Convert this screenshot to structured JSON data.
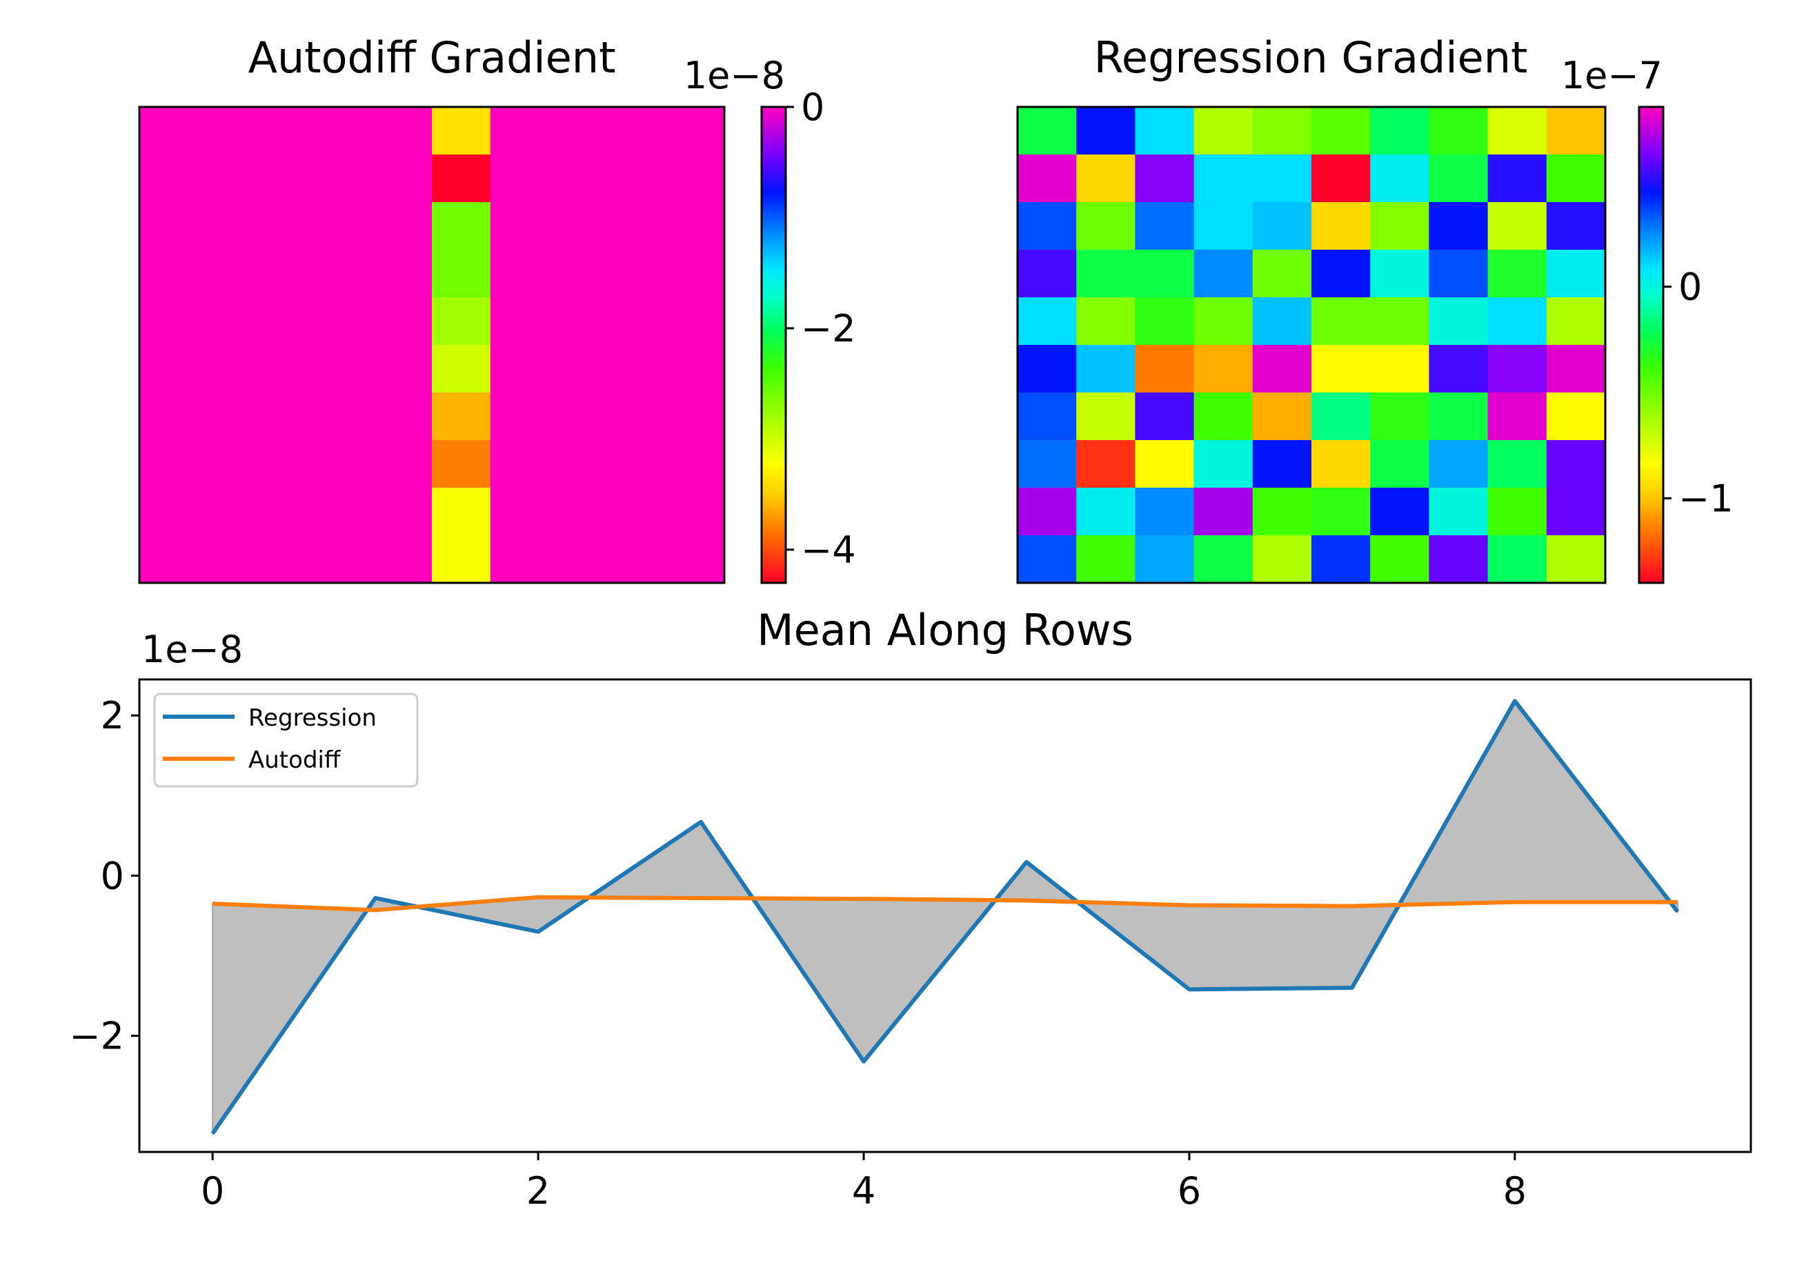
{
  "chart_data": [
    {
      "type": "heatmap",
      "title": "Autodiff Gradient",
      "colormap": "gist_rainbow_r",
      "colorbar": {
        "offset_label": "1e−8",
        "range": [
          -4.3,
          0.0
        ],
        "ticks": [
          0,
          -2,
          -4
        ],
        "tick_labels": [
          "0",
          "−2",
          "−4"
        ]
      },
      "rows": 10,
      "cols": 10,
      "note_values_in_units_of_offset": true,
      "values": [
        [
          0,
          0,
          0,
          0,
          0,
          -3.4,
          0,
          0,
          0,
          0
        ],
        [
          0,
          0,
          0,
          0,
          0,
          -4.3,
          0,
          0,
          0,
          0
        ],
        [
          0,
          0,
          0,
          0,
          0,
          -2.6,
          0,
          0,
          0,
          0
        ],
        [
          0,
          0,
          0,
          0,
          0,
          -2.6,
          0,
          0,
          0,
          0
        ],
        [
          0,
          0,
          0,
          0,
          0,
          -2.8,
          0,
          0,
          0,
          0
        ],
        [
          0,
          0,
          0,
          0,
          0,
          -3.0,
          0,
          0,
          0,
          0
        ],
        [
          0,
          0,
          0,
          0,
          0,
          -3.6,
          0,
          0,
          0,
          0
        ],
        [
          0,
          0,
          0,
          0,
          0,
          -3.8,
          0,
          0,
          0,
          0
        ],
        [
          0,
          0,
          0,
          0,
          0,
          -3.2,
          0,
          0,
          0,
          0
        ],
        [
          0,
          0,
          0,
          0,
          0,
          -3.2,
          0,
          0,
          0,
          0
        ]
      ]
    },
    {
      "type": "heatmap",
      "title": "Regression Gradient",
      "colormap": "gist_rainbow_r",
      "colorbar": {
        "offset_label": "1e−7",
        "range": [
          -1.4,
          0.85
        ],
        "ticks": [
          0,
          -1
        ],
        "tick_labels": [
          "0",
          "−1"
        ]
      },
      "rows": 10,
      "cols": 10,
      "values": [
        [
          -0.25,
          0.45,
          0.1,
          -0.65,
          -0.55,
          -0.45,
          -0.2,
          -0.35,
          -0.75,
          -1.0
        ],
        [
          0.8,
          -0.95,
          0.65,
          0.1,
          0.1,
          -1.4,
          0.05,
          -0.25,
          0.5,
          -0.4
        ],
        [
          0.35,
          -0.5,
          0.3,
          0.1,
          0.15,
          -0.95,
          -0.55,
          0.45,
          -0.7,
          0.5
        ],
        [
          0.55,
          -0.25,
          -0.25,
          0.25,
          -0.5,
          0.45,
          0.0,
          0.35,
          -0.3,
          0.05
        ],
        [
          0.1,
          -0.55,
          -0.35,
          -0.5,
          0.15,
          -0.5,
          -0.5,
          0.0,
          0.1,
          -0.65
        ],
        [
          0.45,
          0.15,
          -1.15,
          -1.05,
          0.8,
          -0.85,
          -0.85,
          0.55,
          0.65,
          0.8
        ],
        [
          0.35,
          -0.7,
          0.55,
          -0.4,
          -1.05,
          -0.15,
          -0.35,
          -0.25,
          0.8,
          -0.85
        ],
        [
          0.3,
          -1.3,
          -0.85,
          0.0,
          0.45,
          -0.95,
          -0.25,
          0.2,
          -0.2,
          0.6
        ],
        [
          0.7,
          0.05,
          0.25,
          0.7,
          -0.4,
          -0.35,
          0.45,
          0.0,
          -0.4,
          0.6
        ],
        [
          0.35,
          -0.4,
          0.2,
          -0.25,
          -0.65,
          0.4,
          -0.4,
          0.6,
          -0.2,
          -0.65
        ]
      ]
    },
    {
      "type": "line",
      "title": "Mean Along Rows",
      "y_offset_label": "1e−8",
      "x": [
        0,
        1,
        2,
        3,
        4,
        5,
        6,
        7,
        8,
        9
      ],
      "xlim": [
        -0.45,
        9.45
      ],
      "ylim": [
        -3.45,
        2.45
      ],
      "xticks": [
        0,
        2,
        4,
        6,
        8
      ],
      "xtick_labels": [
        "0",
        "2",
        "4",
        "6",
        "8"
      ],
      "yticks": [
        2,
        0,
        -2
      ],
      "ytick_labels": [
        "2",
        "0",
        "−2"
      ],
      "legend": {
        "position": "upper-left"
      },
      "fill_between": {
        "color": "#bfbfbf",
        "between": [
          "Regression",
          "Autodiff"
        ]
      },
      "series": [
        {
          "name": "Regression",
          "color": "#1f77b4",
          "values": [
            -3.22,
            -0.28,
            -0.7,
            0.67,
            -2.32,
            0.17,
            -1.42,
            -1.4,
            2.18,
            -0.45
          ]
        },
        {
          "name": "Autodiff",
          "color": "#ff7f0e",
          "values": [
            -0.35,
            -0.43,
            -0.27,
            -0.28,
            -0.29,
            -0.31,
            -0.37,
            -0.38,
            -0.33,
            -0.33
          ]
        }
      ]
    }
  ]
}
